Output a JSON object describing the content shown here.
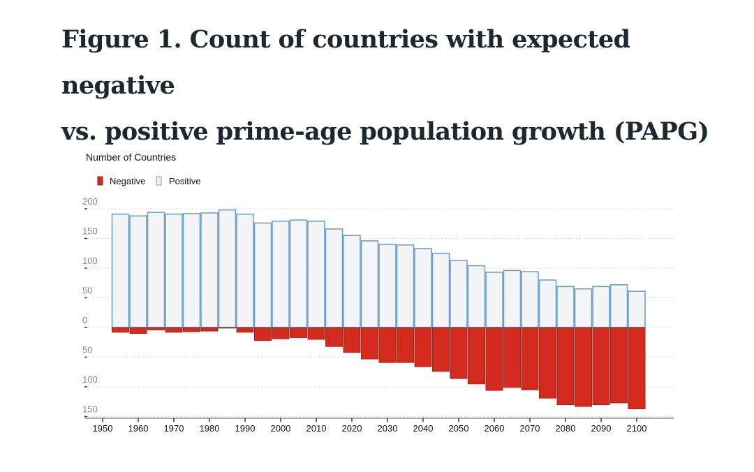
{
  "title": {
    "line1": "Figure 1. Count of countries with expected negative",
    "line2": "vs. positive prime-age population growth (PAPG)"
  },
  "chart_data": {
    "type": "bar",
    "stacked": "diverging",
    "title": "Figure 1. Count of countries with expected negative vs. positive prime-age population growth (PAPG)",
    "ylabel": "Number of Countries",
    "xlabel": "",
    "legend": {
      "position": "top-left",
      "entries": [
        "Negative",
        "Positive"
      ]
    },
    "colors": {
      "negative_fill": "#d52b1e",
      "negative_stroke": "#8c2a22",
      "positive_fill": "#f3f4f6",
      "positive_stroke": "#6b9bc9"
    },
    "grid": true,
    "ylim": [
      -150,
      200
    ],
    "y_ticks": [
      200,
      150,
      100,
      50,
      0,
      -50,
      -100,
      -150
    ],
    "y_tick_labels": [
      "200",
      "150",
      "100",
      "50",
      "0",
      "50",
      "100",
      "150"
    ],
    "x_ticks": [
      1950,
      1960,
      1970,
      1980,
      1990,
      2000,
      2010,
      2020,
      2030,
      2040,
      2050,
      2060,
      2070,
      2080,
      2090,
      2100
    ],
    "xlim": [
      1945,
      2110
    ],
    "x": [
      1955,
      1960,
      1965,
      1970,
      1975,
      1980,
      1985,
      1990,
      1995,
      2000,
      2005,
      2010,
      2015,
      2020,
      2025,
      2030,
      2035,
      2040,
      2045,
      2050,
      2055,
      2060,
      2065,
      2070,
      2075,
      2080,
      2085,
      2090,
      2095,
      2100
    ],
    "series": [
      {
        "name": "Positive",
        "values": [
          191,
          188,
          194,
          191,
          192,
          193,
          198,
          191,
          176,
          179,
          181,
          179,
          166,
          155,
          146,
          140,
          139,
          133,
          125,
          113,
          104,
          93,
          96,
          94,
          80,
          69,
          65,
          69,
          72,
          61
        ]
      },
      {
        "name": "Negative",
        "values": [
          8,
          10,
          4,
          8,
          7,
          6,
          1,
          8,
          22,
          19,
          17,
          20,
          32,
          42,
          53,
          59,
          59,
          66,
          74,
          86,
          95,
          106,
          101,
          105,
          119,
          130,
          133,
          130,
          127,
          137
        ]
      }
    ]
  }
}
